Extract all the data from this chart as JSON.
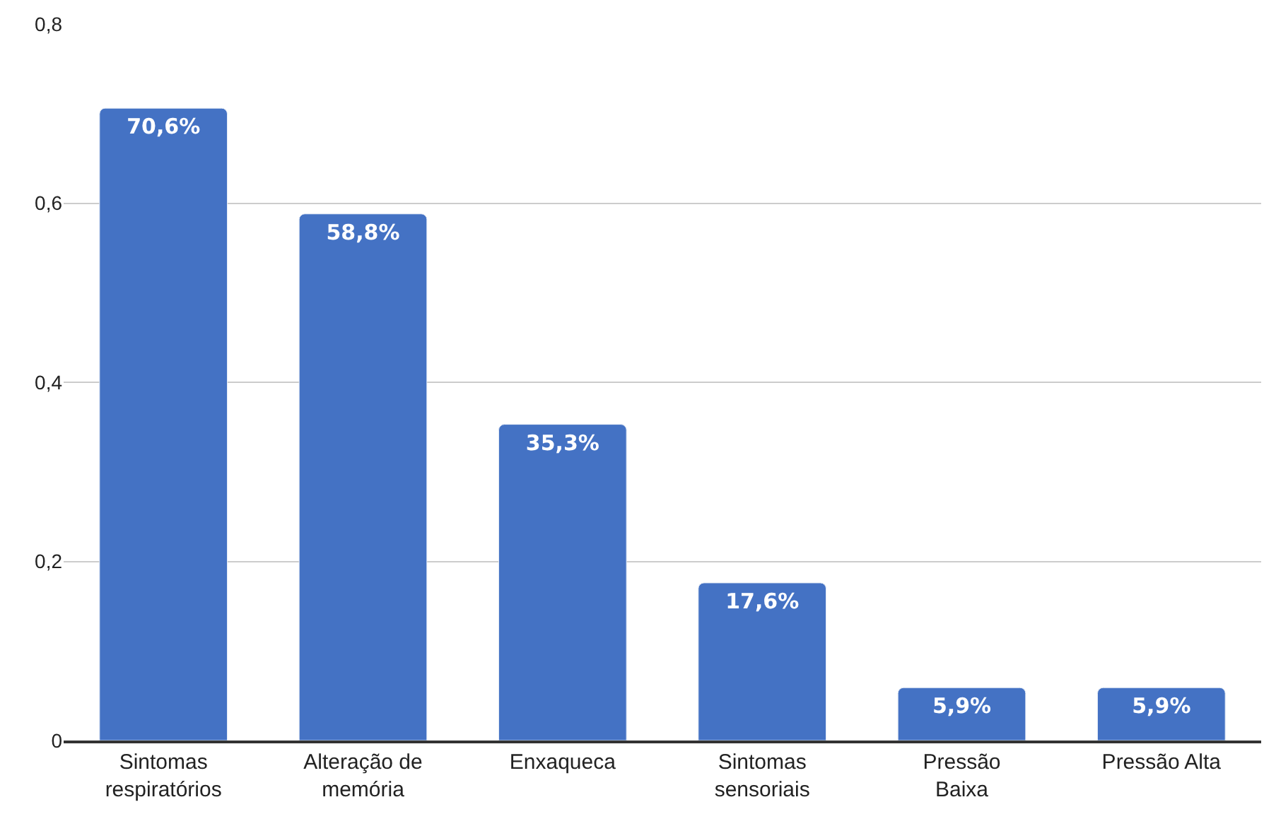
{
  "chart_data": {
    "type": "bar",
    "categories": [
      "Sintomas respiratórios",
      "Alteração de memória",
      "Enxaqueca",
      "Sintomas sensoriais",
      "Pressão Baixa",
      "Pressão Alta"
    ],
    "values": [
      0.706,
      0.588,
      0.353,
      0.176,
      0.059,
      0.059
    ],
    "value_labels": [
      "70,6%",
      "58,8%",
      "35,3%",
      "17,6%",
      "5,9%",
      "5,9%"
    ],
    "color": "#4472c4",
    "ylim": [
      0,
      0.8
    ],
    "yticks": [
      0,
      {
        "value": 0.2,
        "label": "0,2"
      },
      {
        "value": 0.4,
        "label": "0,4"
      },
      {
        "value": 0.6,
        "label": "0,6"
      },
      {
        "value": 0.8,
        "label": "0,8"
      }
    ],
    "grid": "y",
    "legend": false
  }
}
